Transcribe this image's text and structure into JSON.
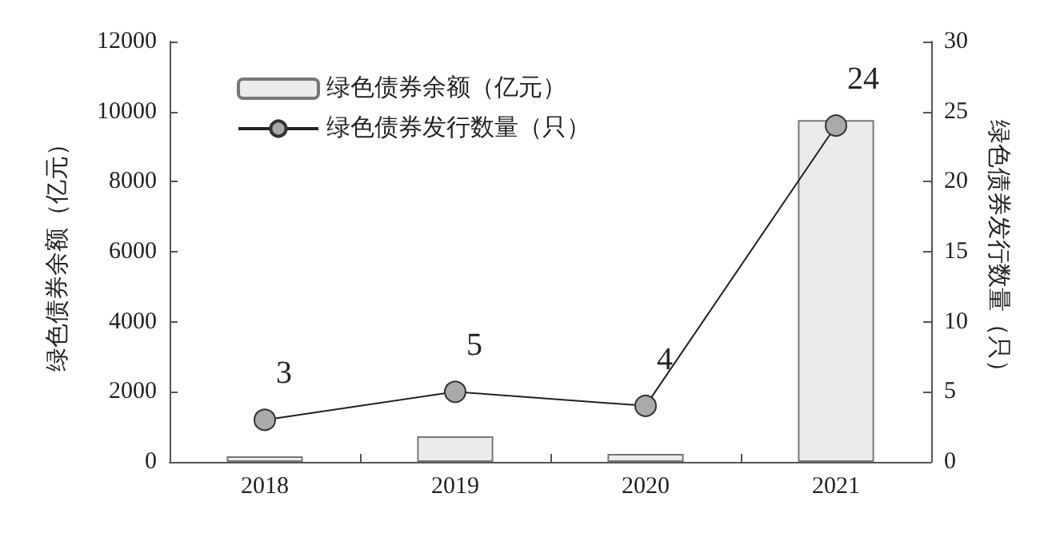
{
  "chart_data": {
    "type": "bar",
    "categories": [
      "2018",
      "2019",
      "2020",
      "2021"
    ],
    "ylabel": "绿色债券余额（亿元）",
    "y2label": "绿色债券发行数量（只）",
    "ylim": [
      0,
      12000
    ],
    "yticks": [
      0,
      2000,
      4000,
      6000,
      8000,
      10000,
      12000
    ],
    "y2lim": [
      0,
      30
    ],
    "y2ticks": [
      0,
      5,
      10,
      15,
      20,
      25,
      30
    ],
    "legend": "top left",
    "grid": false,
    "marker": "circle",
    "line_style": "solid",
    "series": [
      {
        "name": "绿色债券余额（亿元）",
        "color": "#ebebeb",
        "values": [
          160,
          730,
          230,
          9760
        ]
      },
      {
        "name": "绿色债券发行数量（只）",
        "type": "line",
        "axis": "y2",
        "color": "#aaaaaa",
        "values": [
          3,
          5,
          4,
          24
        ],
        "data_labels": true
      }
    ]
  }
}
